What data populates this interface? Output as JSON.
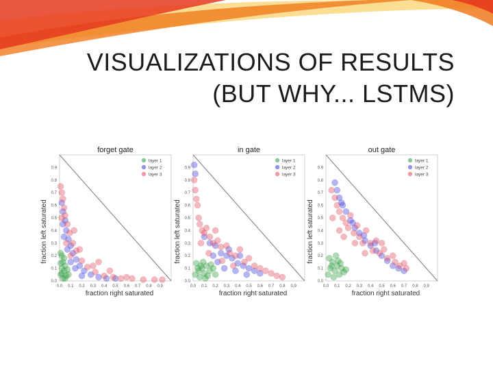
{
  "slide": {
    "title_line1": "VISUALIZATIONS OF RESULTS",
    "title_line2": "(BUT WHY... LSTMS)"
  },
  "colors": {
    "layer1": "#2e9a3c",
    "layer2": "#3a3ad8",
    "layer3": "#e0465a",
    "accent_orange": "#f07a1e",
    "accent_red": "#e63a1e",
    "accent_yellow": "#f8c23a"
  },
  "chart_data": [
    {
      "type": "scatter",
      "title": "forget gate",
      "xlabel": "fraction right saturated",
      "ylabel": "fraction left saturated",
      "xlim": [
        0,
        1
      ],
      "ylim": [
        0,
        1
      ],
      "xticks": [
        "0.0",
        "0.1",
        "0.2",
        "0.3",
        "0.4",
        "0.5",
        "0.6",
        "0.7",
        "0.8",
        "0.9"
      ],
      "yticks": [
        "0.0",
        "0.1",
        "0.2",
        "0.3",
        "0.4",
        "0.5",
        "0.6",
        "0.7",
        "0.8",
        "0.9"
      ],
      "legend_position": "top-right",
      "grid": false,
      "series": [
        {
          "name": "layer 1",
          "color": "#2e9a3c",
          "points": [
            [
              0.01,
              0.05
            ],
            [
              0.02,
              0.1
            ],
            [
              0.03,
              0.15
            ],
            [
              0.02,
              0.2
            ],
            [
              0.04,
              0.08
            ],
            [
              0.05,
              0.12
            ],
            [
              0.01,
              0.22
            ],
            [
              0.06,
              0.04
            ],
            [
              0.03,
              0.02
            ],
            [
              0.07,
              0.09
            ],
            [
              0.02,
              0.06
            ],
            [
              0.04,
              0.18
            ],
            [
              0.08,
              0.05
            ],
            [
              0.01,
              0.14
            ],
            [
              0.05,
              0.02
            ]
          ]
        },
        {
          "name": "layer 2",
          "color": "#3a3ad8",
          "points": [
            [
              0.02,
              0.62
            ],
            [
              0.03,
              0.55
            ],
            [
              0.05,
              0.48
            ],
            [
              0.06,
              0.4
            ],
            [
              0.08,
              0.33
            ],
            [
              0.1,
              0.28
            ],
            [
              0.12,
              0.22
            ],
            [
              0.15,
              0.17
            ],
            [
              0.18,
              0.12
            ],
            [
              0.22,
              0.08
            ],
            [
              0.28,
              0.05
            ],
            [
              0.35,
              0.03
            ],
            [
              0.42,
              0.02
            ],
            [
              0.5,
              0.02
            ],
            [
              0.04,
              0.35
            ],
            [
              0.07,
              0.25
            ],
            [
              0.1,
              0.15
            ],
            [
              0.14,
              0.1
            ],
            [
              0.03,
              0.45
            ],
            [
              0.2,
              0.04
            ]
          ]
        },
        {
          "name": "layer 3",
          "color": "#e0465a",
          "points": [
            [
              0.01,
              0.75
            ],
            [
              0.02,
              0.7
            ],
            [
              0.03,
              0.65
            ],
            [
              0.04,
              0.58
            ],
            [
              0.05,
              0.52
            ],
            [
              0.07,
              0.45
            ],
            [
              0.09,
              0.38
            ],
            [
              0.12,
              0.3
            ],
            [
              0.15,
              0.24
            ],
            [
              0.2,
              0.16
            ],
            [
              0.25,
              0.11
            ],
            [
              0.32,
              0.07
            ],
            [
              0.4,
              0.04
            ],
            [
              0.48,
              0.03
            ],
            [
              0.55,
              0.02
            ],
            [
              0.65,
              0.02
            ],
            [
              0.75,
              0.01
            ],
            [
              0.85,
              0.01
            ],
            [
              0.92,
              0.01
            ],
            [
              0.1,
              0.2
            ],
            [
              0.3,
              0.12
            ],
            [
              0.06,
              0.3
            ],
            [
              0.45,
              0.08
            ],
            [
              0.6,
              0.03
            ],
            [
              0.18,
              0.25
            ],
            [
              0.02,
              0.5
            ],
            [
              0.35,
              0.15
            ],
            [
              0.13,
              0.4
            ]
          ]
        }
      ]
    },
    {
      "type": "scatter",
      "title": "in gate",
      "xlabel": "fraction right saturated",
      "ylabel": "fraction left saturated",
      "xlim": [
        0,
        1
      ],
      "ylim": [
        0,
        1
      ],
      "xticks": [
        "0.0",
        "0.1",
        "0.2",
        "0.3",
        "0.4",
        "0.5",
        "0.6",
        "0.7",
        "0.8",
        "0.9"
      ],
      "yticks": [
        "0.0",
        "0.1",
        "0.2",
        "0.3",
        "0.4",
        "0.5",
        "0.6",
        "0.7",
        "0.8",
        "0.9"
      ],
      "legend_position": "top-right",
      "grid": false,
      "series": [
        {
          "name": "layer 1",
          "color": "#2e9a3c",
          "points": [
            [
              0.02,
              0.05
            ],
            [
              0.05,
              0.08
            ],
            [
              0.08,
              0.1
            ],
            [
              0.1,
              0.06
            ],
            [
              0.12,
              0.12
            ],
            [
              0.15,
              0.08
            ],
            [
              0.03,
              0.14
            ],
            [
              0.06,
              0.03
            ],
            [
              0.09,
              0.15
            ],
            [
              0.13,
              0.04
            ],
            [
              0.18,
              0.1
            ],
            [
              0.2,
              0.05
            ],
            [
              0.04,
              0.1
            ],
            [
              0.07,
              0.12
            ],
            [
              0.11,
              0.02
            ],
            [
              0.16,
              0.13
            ]
          ]
        },
        {
          "name": "layer 2",
          "color": "#3a3ad8",
          "points": [
            [
              0.01,
              0.92
            ],
            [
              0.02,
              0.85
            ],
            [
              0.1,
              0.35
            ],
            [
              0.15,
              0.3
            ],
            [
              0.2,
              0.28
            ],
            [
              0.25,
              0.22
            ],
            [
              0.3,
              0.2
            ],
            [
              0.35,
              0.18
            ],
            [
              0.4,
              0.14
            ],
            [
              0.45,
              0.12
            ],
            [
              0.5,
              0.1
            ],
            [
              0.55,
              0.08
            ],
            [
              0.6,
              0.06
            ],
            [
              0.22,
              0.15
            ],
            [
              0.32,
              0.25
            ],
            [
              0.42,
              0.2
            ],
            [
              0.28,
              0.1
            ],
            [
              0.38,
              0.08
            ],
            [
              0.18,
              0.2
            ],
            [
              0.48,
              0.05
            ]
          ]
        },
        {
          "name": "layer 3",
          "color": "#e0465a",
          "points": [
            [
              0.01,
              0.8
            ],
            [
              0.02,
              0.72
            ],
            [
              0.03,
              0.65
            ],
            [
              0.04,
              0.6
            ],
            [
              0.05,
              0.5
            ],
            [
              0.06,
              0.45
            ],
            [
              0.08,
              0.4
            ],
            [
              0.1,
              0.38
            ],
            [
              0.12,
              0.42
            ],
            [
              0.15,
              0.35
            ],
            [
              0.18,
              0.3
            ],
            [
              0.22,
              0.32
            ],
            [
              0.25,
              0.27
            ],
            [
              0.3,
              0.28
            ],
            [
              0.33,
              0.22
            ],
            [
              0.38,
              0.2
            ],
            [
              0.42,
              0.25
            ],
            [
              0.46,
              0.15
            ],
            [
              0.5,
              0.18
            ],
            [
              0.55,
              0.12
            ],
            [
              0.6,
              0.1
            ],
            [
              0.65,
              0.08
            ],
            [
              0.7,
              0.06
            ],
            [
              0.75,
              0.04
            ],
            [
              0.8,
              0.03
            ],
            [
              0.14,
              0.22
            ],
            [
              0.26,
              0.16
            ],
            [
              0.36,
              0.12
            ],
            [
              0.07,
              0.3
            ],
            [
              0.2,
              0.4
            ]
          ]
        }
      ]
    },
    {
      "type": "scatter",
      "title": "out gate",
      "xlabel": "fraction right saturated",
      "ylabel": "fraction left saturated",
      "xlim": [
        0,
        1
      ],
      "ylim": [
        0,
        1
      ],
      "xticks": [
        "0.0",
        "0.1",
        "0.2",
        "0.3",
        "0.4",
        "0.5",
        "0.6",
        "0.7",
        "0.8",
        "0.9"
      ],
      "yticks": [
        "0.0",
        "0.1",
        "0.2",
        "0.3",
        "0.4",
        "0.5",
        "0.6",
        "0.7",
        "0.8",
        "0.9"
      ],
      "legend_position": "top-right",
      "grid": false,
      "series": [
        {
          "name": "layer 1",
          "color": "#2e9a3c",
          "points": [
            [
              0.02,
              0.05
            ],
            [
              0.04,
              0.1
            ],
            [
              0.06,
              0.15
            ],
            [
              0.08,
              0.08
            ],
            [
              0.1,
              0.12
            ],
            [
              0.12,
              0.05
            ],
            [
              0.14,
              0.1
            ],
            [
              0.16,
              0.07
            ],
            [
              0.03,
              0.18
            ],
            [
              0.07,
              0.03
            ],
            [
              0.11,
              0.16
            ],
            [
              0.05,
              0.12
            ],
            [
              0.09,
              0.2
            ],
            [
              0.13,
              0.14
            ],
            [
              0.18,
              0.09
            ]
          ]
        },
        {
          "name": "layer 2",
          "color": "#3a3ad8",
          "points": [
            [
              0.08,
              0.78
            ],
            [
              0.1,
              0.72
            ],
            [
              0.12,
              0.66
            ],
            [
              0.15,
              0.6
            ],
            [
              0.18,
              0.55
            ],
            [
              0.22,
              0.48
            ],
            [
              0.26,
              0.42
            ],
            [
              0.3,
              0.38
            ],
            [
              0.35,
              0.32
            ],
            [
              0.4,
              0.28
            ],
            [
              0.45,
              0.24
            ],
            [
              0.5,
              0.2
            ],
            [
              0.55,
              0.16
            ],
            [
              0.6,
              0.12
            ],
            [
              0.65,
              0.1
            ],
            [
              0.7,
              0.08
            ],
            [
              0.14,
              0.62
            ],
            [
              0.24,
              0.46
            ],
            [
              0.34,
              0.36
            ],
            [
              0.44,
              0.3
            ]
          ]
        },
        {
          "name": "layer 3",
          "color": "#e0465a",
          "points": [
            [
              0.05,
              0.72
            ],
            [
              0.08,
              0.66
            ],
            [
              0.1,
              0.6
            ],
            [
              0.12,
              0.55
            ],
            [
              0.15,
              0.5
            ],
            [
              0.18,
              0.46
            ],
            [
              0.2,
              0.42
            ],
            [
              0.22,
              0.52
            ],
            [
              0.25,
              0.38
            ],
            [
              0.28,
              0.44
            ],
            [
              0.3,
              0.35
            ],
            [
              0.33,
              0.3
            ],
            [
              0.36,
              0.4
            ],
            [
              0.4,
              0.3
            ],
            [
              0.42,
              0.24
            ],
            [
              0.45,
              0.32
            ],
            [
              0.48,
              0.22
            ],
            [
              0.52,
              0.25
            ],
            [
              0.55,
              0.18
            ],
            [
              0.6,
              0.2
            ],
            [
              0.62,
              0.15
            ],
            [
              0.66,
              0.12
            ],
            [
              0.7,
              0.14
            ],
            [
              0.72,
              0.1
            ],
            [
              0.06,
              0.5
            ],
            [
              0.16,
              0.35
            ],
            [
              0.26,
              0.3
            ],
            [
              0.35,
              0.22
            ],
            [
              0.12,
              0.4
            ],
            [
              0.5,
              0.3
            ]
          ]
        }
      ]
    }
  ]
}
